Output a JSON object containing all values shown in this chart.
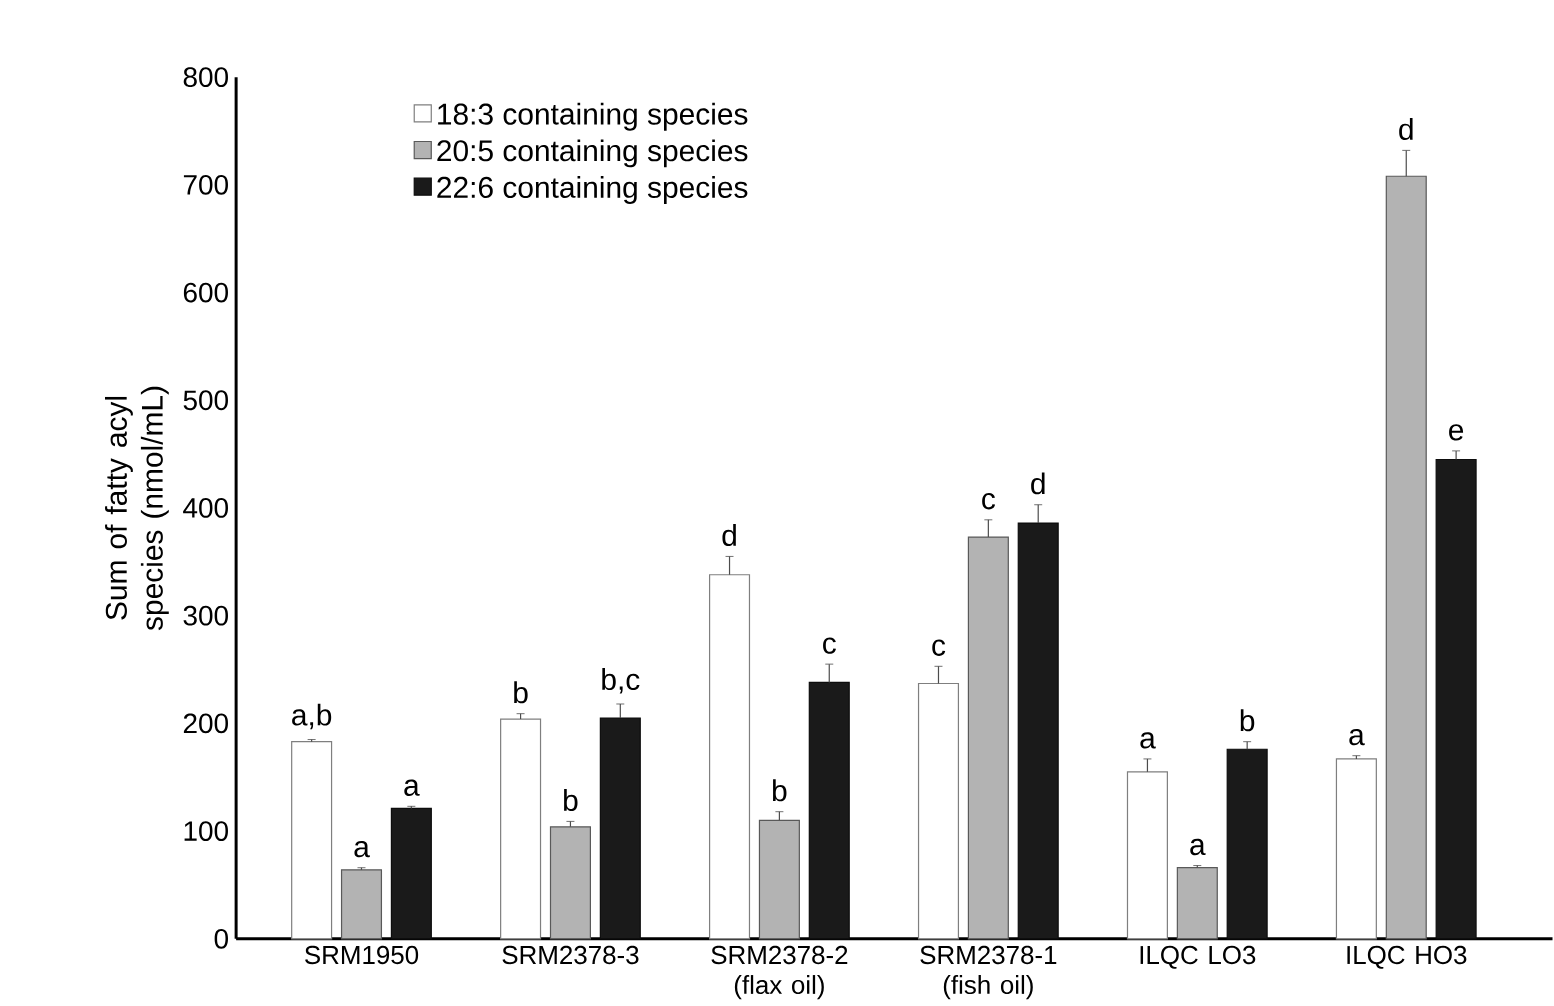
{
  "chart_data": {
    "type": "bar",
    "ylabel": "Sum of fatty acyl species (nmol/mL)",
    "categories": [
      "SRM1950",
      "SRM2378-3",
      "SRM2378-2 (flax oil)",
      "SRM2378-1 (fish oil)",
      "ILQC LO3",
      "ILQC HO3"
    ],
    "series": [
      {
        "name": "18:3 containing species",
        "color": "#ffffff",
        "values": [
          183,
          204,
          338,
          237,
          155,
          167
        ],
        "errors": [
          2,
          5,
          17,
          16,
          12,
          3
        ],
        "value_labels": [
          "a,b",
          "b",
          "d",
          "c",
          "a",
          "a"
        ]
      },
      {
        "name": "20:5 containing species",
        "color": "#b3b3b3",
        "values": [
          64,
          104,
          110,
          373,
          66,
          708
        ],
        "errors": [
          2,
          5,
          8,
          16,
          2,
          24
        ],
        "value_labels": [
          "a",
          "b",
          "b",
          "c",
          "a",
          "d"
        ]
      },
      {
        "name": "22:6 containing species",
        "color": "#1a1a1a",
        "values": [
          121,
          205,
          238,
          386,
          176,
          445
        ],
        "errors": [
          2,
          13,
          17,
          17,
          7,
          8
        ],
        "value_labels": [
          "a",
          "b,c",
          "c",
          "d",
          "b",
          "e"
        ]
      }
    ],
    "ylim": [
      0,
      800
    ],
    "yticks": [
      0,
      100,
      200,
      300,
      400,
      500,
      600,
      700,
      800
    ],
    "legend": "top left"
  }
}
